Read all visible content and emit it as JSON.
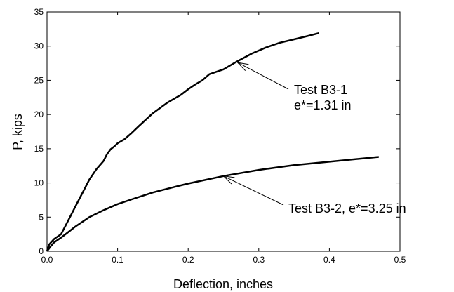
{
  "chart_data": {
    "type": "line",
    "title": "",
    "xlabel": "Deflection, inches",
    "ylabel": "P, kips",
    "xlim": [
      0,
      0.5
    ],
    "ylim": [
      0,
      35
    ],
    "xticks": [
      0.0,
      0.1,
      0.2,
      0.3,
      0.4,
      0.5
    ],
    "xtick_labels": [
      "0.0",
      "0.1",
      "0.2",
      "0.3",
      "0.4",
      "0.5"
    ],
    "yticks": [
      0,
      5,
      10,
      15,
      20,
      25,
      30,
      35
    ],
    "ytick_labels": [
      "0",
      "5",
      "10",
      "15",
      "20",
      "25",
      "30",
      "35"
    ],
    "grid": false,
    "legend": "none",
    "line_color": "#000000",
    "series": [
      {
        "name": "",
        "x": [
          0,
          0.003,
          0.01,
          0.02,
          0.03,
          0.04,
          0.05,
          0.06,
          0.07,
          0.08,
          0.085,
          0.09,
          0.095,
          0.1,
          0.11,
          0.12,
          0.13,
          0.15,
          0.17,
          0.19,
          0.2,
          0.21,
          0.22,
          0.23,
          0.25,
          0.27,
          0.29,
          0.31,
          0.33,
          0.35,
          0.37,
          0.385
        ],
        "y": [
          0,
          1.0,
          1.8,
          2.5,
          4.5,
          6.5,
          8.5,
          10.5,
          12.0,
          13.2,
          14.2,
          14.9,
          15.3,
          15.8,
          16.4,
          17.3,
          18.3,
          20.2,
          21.7,
          22.9,
          23.7,
          24.4,
          25.0,
          25.9,
          26.6,
          27.8,
          28.9,
          29.8,
          30.5,
          31.0,
          31.5,
          31.9
        ]
      },
      {
        "name": "",
        "x": [
          0,
          0.005,
          0.01,
          0.02,
          0.03,
          0.04,
          0.05,
          0.06,
          0.08,
          0.1,
          0.12,
          0.15,
          0.18,
          0.2,
          0.25,
          0.3,
          0.35,
          0.4,
          0.45,
          0.47
        ],
        "y": [
          0,
          0.7,
          1.3,
          2.0,
          2.8,
          3.6,
          4.3,
          5.0,
          6.0,
          6.9,
          7.6,
          8.6,
          9.4,
          9.9,
          11.0,
          11.9,
          12.6,
          13.1,
          13.6,
          13.8
        ]
      }
    ],
    "annotations": [
      {
        "lines": [
          "Test B3-1",
          "e*=1.31 in"
        ],
        "arrow_to": [
          0.27,
          27.6
        ]
      },
      {
        "lines": [
          "Test B3-2, e*=3.25 in"
        ],
        "arrow_to": [
          0.25,
          11.0
        ]
      }
    ]
  }
}
